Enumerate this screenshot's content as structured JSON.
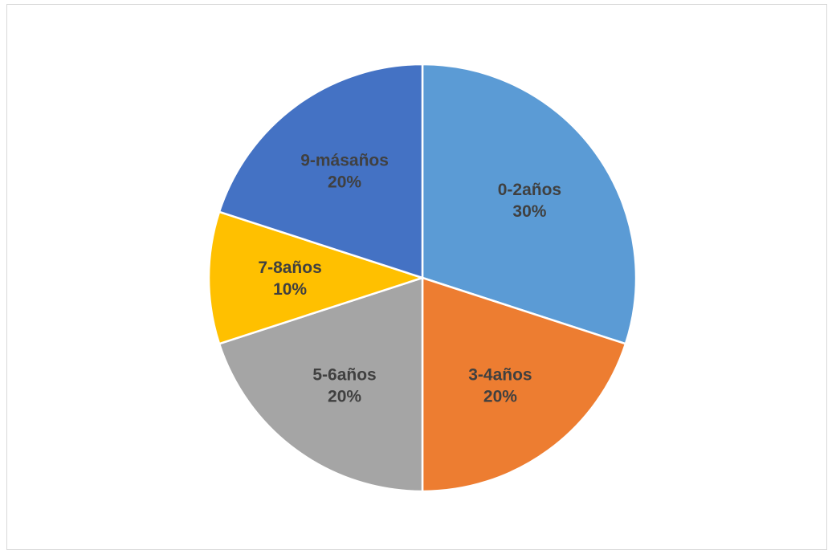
{
  "chart_data": {
    "type": "pie",
    "title": "",
    "slices": [
      {
        "category": "0-2años",
        "value": 30,
        "label": "30%",
        "color": "#5B9BD5"
      },
      {
        "category": "3-4años",
        "value": 20,
        "label": "20%",
        "color": "#ED7D31"
      },
      {
        "category": "5-6años",
        "value": 20,
        "label": "20%",
        "color": "#A5A5A5"
      },
      {
        "category": "7-8años",
        "value": 10,
        "label": "10%",
        "color": "#FFC000"
      },
      {
        "category": "9-másaños",
        "value": 20,
        "label": "20%",
        "color": "#4472C4"
      }
    ],
    "legend": "none",
    "start_angle": "12 o'clock",
    "direction": "clockwise"
  }
}
